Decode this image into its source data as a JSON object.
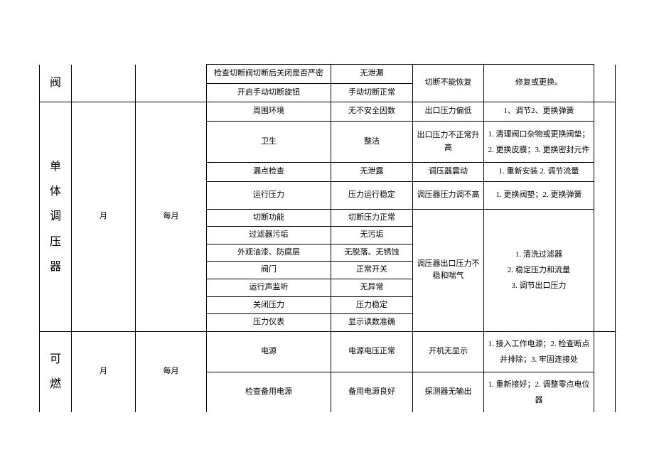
{
  "section1": {
    "label": "阀",
    "rows": [
      {
        "check": "检查切断阀切断后关闭是否严密",
        "standard": "无泄漏",
        "fault": "切断不能恢复",
        "solution": "修复或更换。"
      },
      {
        "check": "开启手动切断旋钮",
        "standard": "手动切断正常"
      }
    ]
  },
  "section2": {
    "label": "单体调压器",
    "freq1": "月",
    "freq2": "每月",
    "rows": [
      {
        "check": "周围环境",
        "standard": "无不安全因数",
        "fault": "出口压力偏低",
        "solution": "1、调节2、更换弹簧"
      },
      {
        "check": "卫生",
        "standard": "整洁",
        "fault": "出口压力不正常升高",
        "solution": "1. 清理阀口杂物或更换阀垫；2. 更换皮膜；3. 更换密封元件"
      },
      {
        "check": "漏点检查",
        "standard": "无泄露",
        "fault": "调压器震动",
        "solution": "1. 重新安装 2. 调节流量"
      },
      {
        "check": "运行压力",
        "standard": "压力运行稳定",
        "fault": "调压器压力调不高",
        "solution": "1. 更换阀垫；2. 更换弹簧"
      },
      {
        "check": "切断功能",
        "standard": "切断压力正常",
        "fault": "调压器出口压力不稳和喘气",
        "solution": "1. 清洗过滤器\n2. 稳定压力和流量\n3. 调节出口压力"
      },
      {
        "check": "过滤器污垢",
        "standard": "无污垢"
      },
      {
        "check": "外观油漆、防腐层",
        "standard": "无脱落、无锈蚀"
      },
      {
        "check": "阀门",
        "standard": "正常开关"
      },
      {
        "check": "运行声监听",
        "standard": "无异常"
      },
      {
        "check": "关闭压力",
        "standard": "压力稳定"
      },
      {
        "check": "压力仪表",
        "standard": "显示读数准确"
      }
    ]
  },
  "section3": {
    "label": "可燃",
    "freq1": "月",
    "freq2": "每月",
    "rows": [
      {
        "check": "电源",
        "standard": "电源电压正常",
        "fault": "开机无显示",
        "solution": "1. 接入工作电源；2. 检查断点并排除；3. 牢固连接处"
      },
      {
        "check": "检查备用电源",
        "standard": "备用电源良好",
        "fault": "探测器无输出",
        "solution": "1. 重新接好；2. 调整零点电位器"
      }
    ]
  }
}
